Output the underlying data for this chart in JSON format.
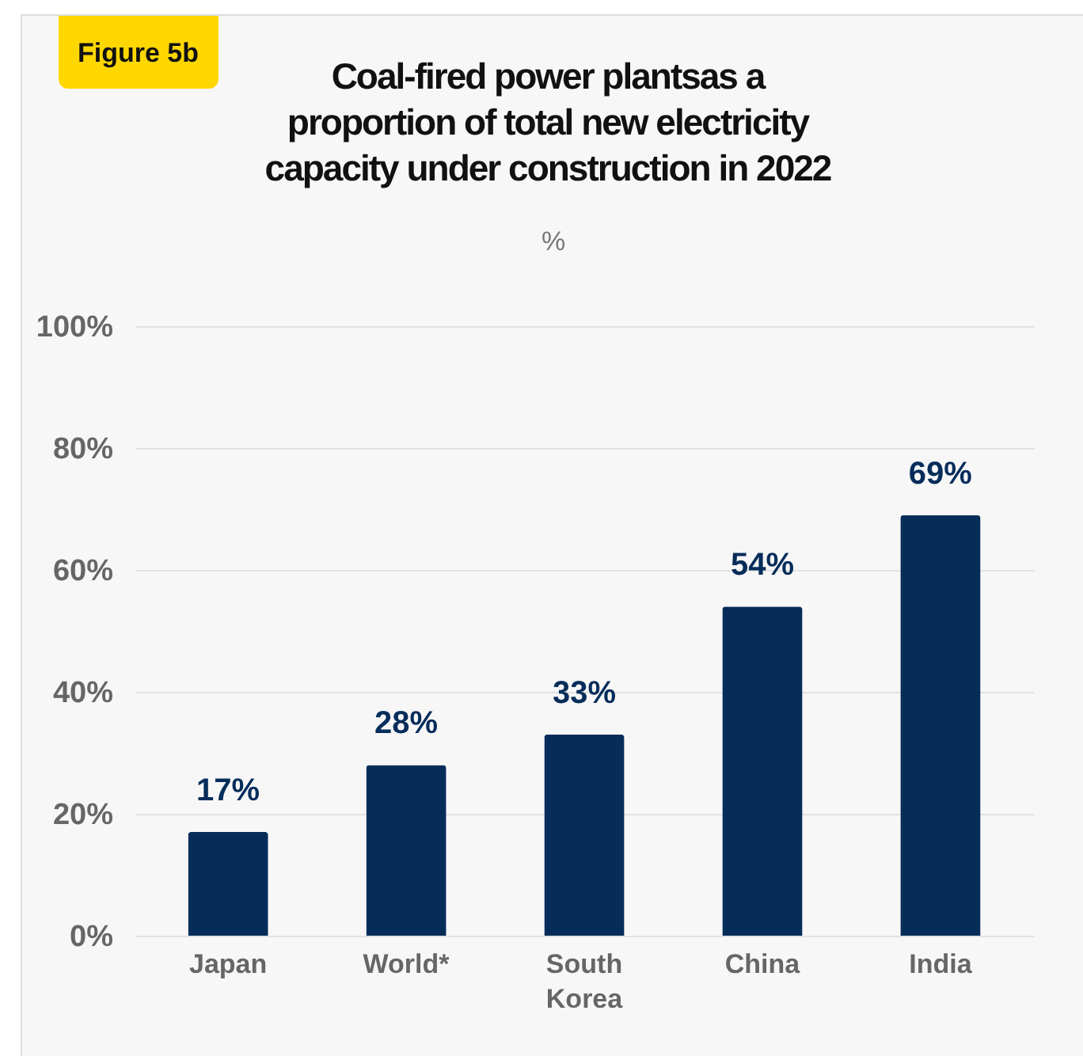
{
  "chart_data": {
    "type": "bar",
    "title": "Coal-fired power plantsas a proportion of total new electricity capacity under construction in 2022",
    "subtitle": "%",
    "annotations": [
      "Figure 5b"
    ],
    "categories": [
      "Japan",
      "World*",
      "South Korea",
      "China",
      "India"
    ],
    "values": [
      17,
      28,
      33,
      54,
      69
    ],
    "value_labels": [
      "17%",
      "28%",
      "33%",
      "54%",
      "69%"
    ],
    "color": "#062d5a",
    "ylim": [
      0,
      100
    ],
    "yticks": [
      {
        "value": 0,
        "label": "0%"
      },
      {
        "value": 20,
        "label": "20%"
      },
      {
        "value": 40,
        "label": "40%"
      },
      {
        "value": 60,
        "label": "60%"
      },
      {
        "value": 80,
        "label": "80%"
      },
      {
        "value": 100,
        "label": "100%"
      }
    ],
    "grid": "y"
  }
}
